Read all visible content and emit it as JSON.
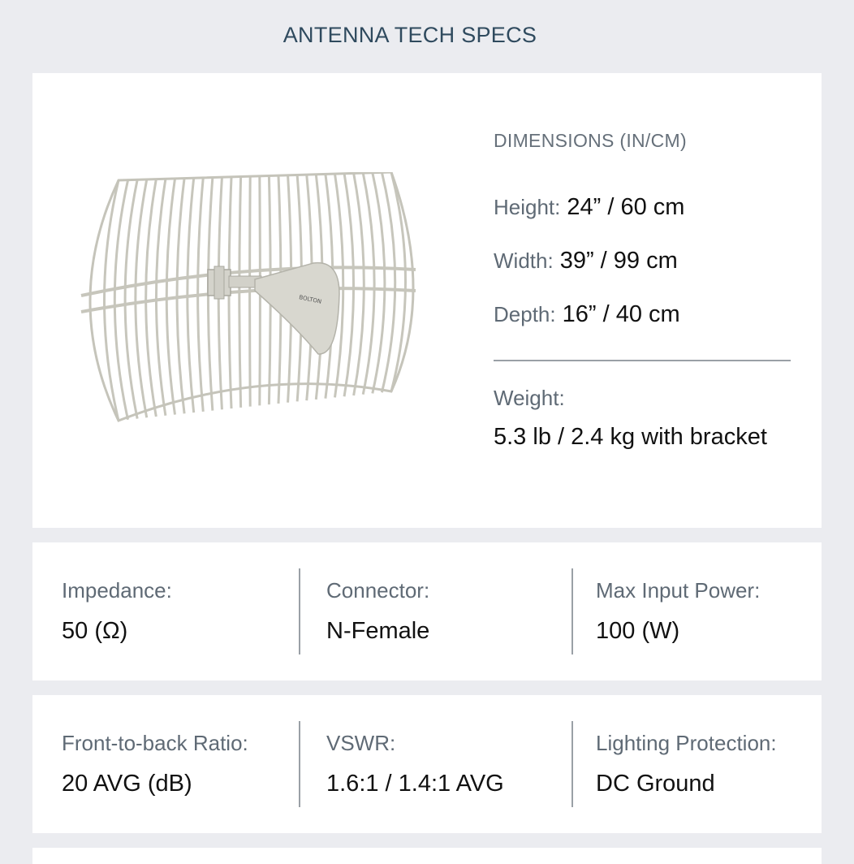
{
  "page": {
    "title": "ANTENNA TECH SPECS"
  },
  "product_image": {
    "brand_text": "BOLTON"
  },
  "dimensions": {
    "heading": "DIMENSIONS (IN/CM)",
    "items": [
      {
        "label": "Height:",
        "value": "24” / 60 cm"
      },
      {
        "label": "Width:",
        "value": "39” / 99 cm"
      },
      {
        "label": "Depth:",
        "value": "16” / 40 cm"
      }
    ],
    "weight": {
      "label": "Weight:",
      "value": "5.3 lb / 2.4 kg with bracket"
    }
  },
  "specs_row1": [
    {
      "label": "Impedance:",
      "value": "50 (Ω)"
    },
    {
      "label": "Connector:",
      "value": "N-Female"
    },
    {
      "label": "Max Input Power:",
      "value": "100 (W)"
    }
  ],
  "specs_row2": [
    {
      "label": "Front-to-back Ratio:",
      "value": "20 AVG (dB)"
    },
    {
      "label": "VSWR:",
      "value": "1.6:1 / 1.4:1 AVG"
    },
    {
      "label": "Lighting Protection:",
      "value": "DC Ground"
    }
  ],
  "colors": {
    "background": "#ebecf0",
    "card": "#ffffff",
    "title": "#2f4a5e",
    "antenna": "#c7c6bc"
  }
}
